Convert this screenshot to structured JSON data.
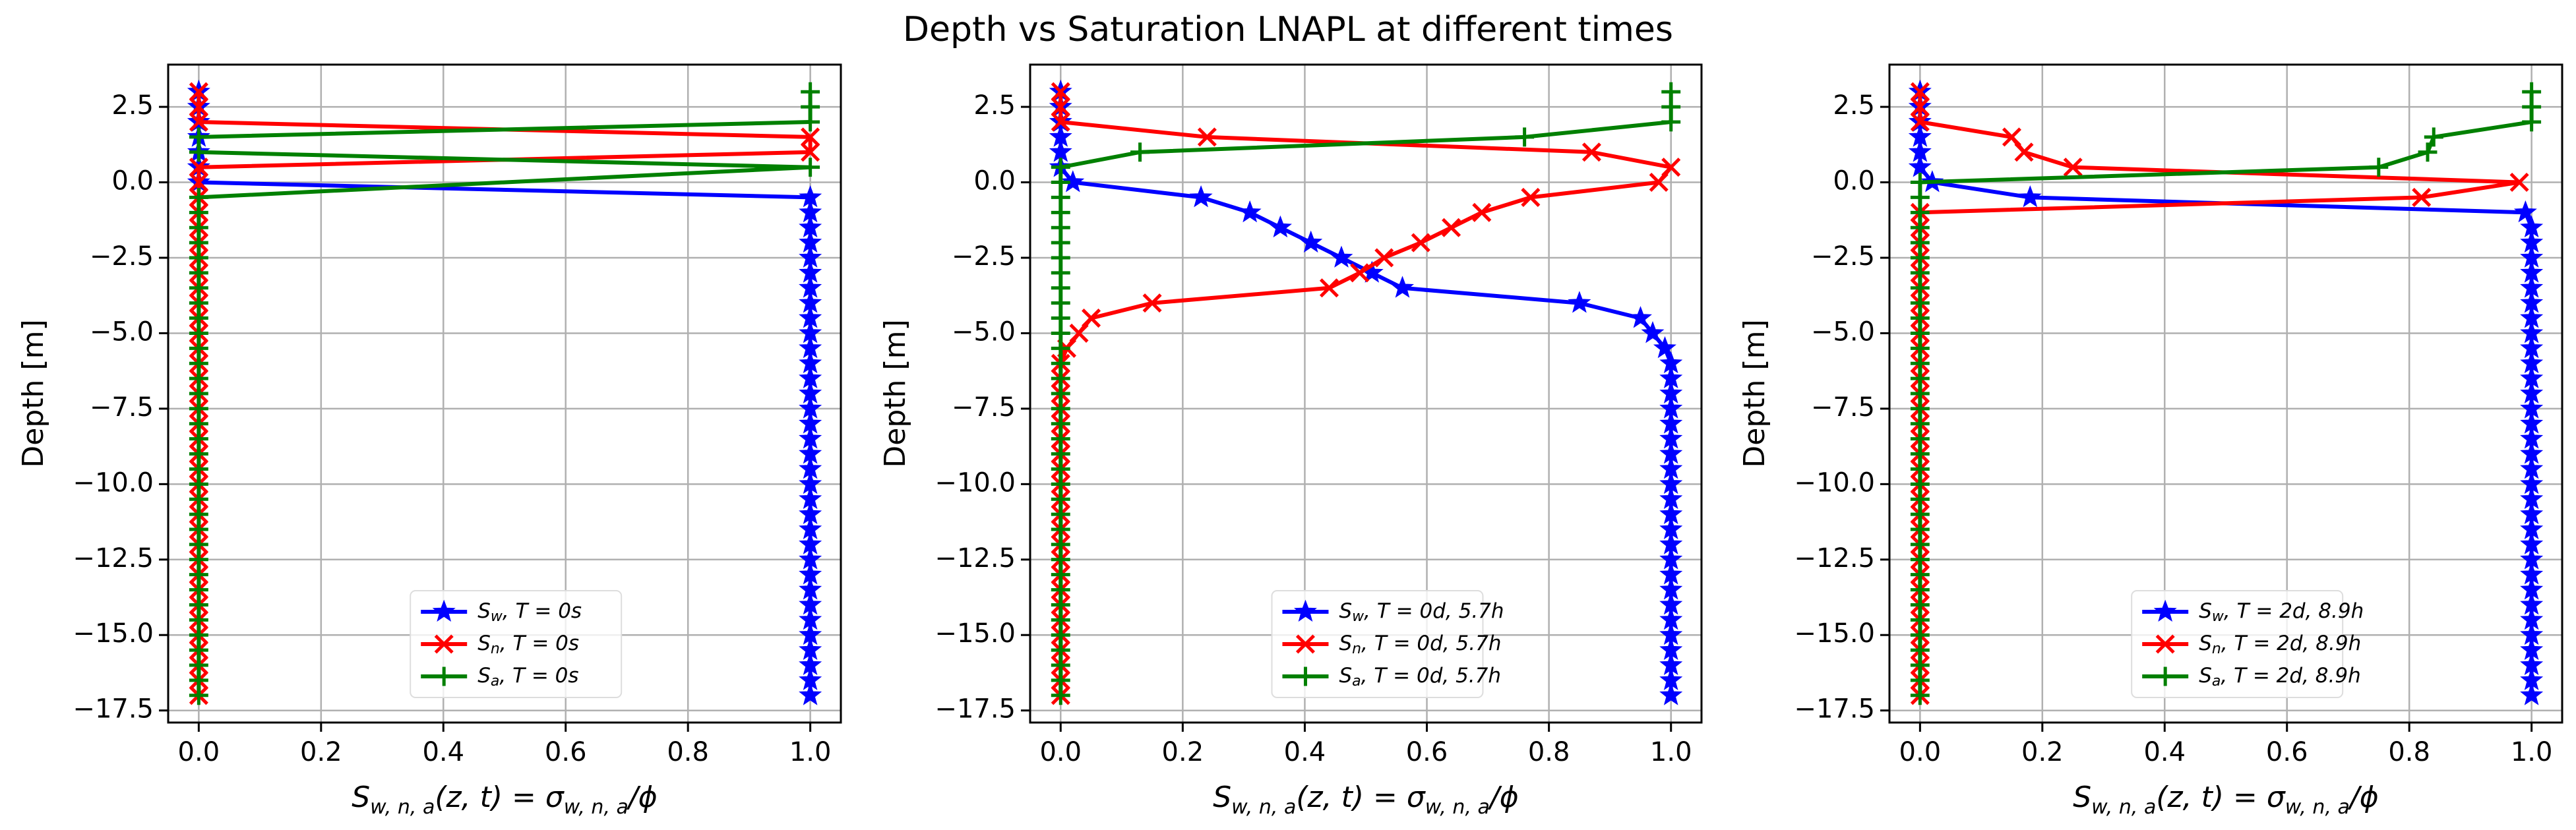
{
  "chart_data": {
    "title": "Depth vs Saturation LNAPL at different times",
    "xlabel": "S_{w,n,a}(z,t) = σ_{w,n,a}/ϕ",
    "ylabel": "Depth [m]",
    "xlim": [
      -0.05,
      1.05
    ],
    "ylim": [
      -17.9,
      3.9
    ],
    "xticks": [
      0.0,
      0.2,
      0.4,
      0.6,
      0.8,
      1.0
    ],
    "xtick_labels": [
      "0.0",
      "0.2",
      "0.4",
      "0.6",
      "0.8",
      "1.0"
    ],
    "yticks": [
      2.5,
      0.0,
      -2.5,
      -5.0,
      -7.5,
      -10.0,
      -12.5,
      -15.0,
      -17.5
    ],
    "ytick_labels": [
      "2.5",
      "0.0",
      "−2.5",
      "−5.0",
      "−7.5",
      "−10.0",
      "−12.5",
      "−15.0",
      "−17.5"
    ],
    "colors": {
      "water": "#0000ff",
      "napl": "#ff0000",
      "air": "#008000"
    },
    "panels": [
      {
        "type": "line",
        "grid": true,
        "legend_placement": "lower-center",
        "series": [
          {
            "name": "S_w, T = 0s",
            "key": "water",
            "marker": "star",
            "points": [
              [
                0,
                3.0
              ],
              [
                0,
                2.5
              ],
              [
                0,
                2.0
              ],
              [
                0,
                1.5
              ],
              [
                0,
                1.0
              ],
              [
                0,
                0.5
              ],
              [
                0,
                0.0
              ],
              [
                1,
                -0.5
              ],
              [
                1,
                -1.0
              ],
              [
                1,
                -17.0
              ]
            ]
          },
          {
            "name": "S_n, T = 0s",
            "key": "napl",
            "marker": "x",
            "points": [
              [
                0,
                3.0
              ],
              [
                0,
                2.5
              ],
              [
                0,
                2.0
              ],
              [
                1,
                1.5
              ],
              [
                1,
                1.0
              ],
              [
                0,
                0.5
              ],
              [
                0,
                0.0
              ],
              [
                0,
                -17.0
              ]
            ]
          },
          {
            "name": "S_a, T = 0s",
            "key": "air",
            "marker": "plus",
            "points": [
              [
                1,
                3.0
              ],
              [
                1,
                2.5
              ],
              [
                1,
                2.0
              ],
              [
                0,
                1.5
              ],
              [
                0,
                1.0
              ],
              [
                1,
                0.5
              ],
              [
                0,
                -0.5
              ],
              [
                0,
                -17.0
              ]
            ]
          }
        ]
      },
      {
        "type": "line",
        "grid": true,
        "legend_placement": "lower-center",
        "series": [
          {
            "name": "S_w, T = 0d, 5.7h",
            "key": "water",
            "marker": "star",
            "points": [
              [
                0,
                3.0
              ],
              [
                0,
                2.5
              ],
              [
                0,
                2.0
              ],
              [
                0,
                1.5
              ],
              [
                0,
                1.0
              ],
              [
                0,
                0.5
              ],
              [
                0.02,
                0.0
              ],
              [
                0.23,
                -0.5
              ],
              [
                0.31,
                -1.0
              ],
              [
                0.36,
                -1.5
              ],
              [
                0.41,
                -2.0
              ],
              [
                0.46,
                -2.5
              ],
              [
                0.51,
                -3.0
              ],
              [
                0.56,
                -3.5
              ],
              [
                0.85,
                -4.0
              ],
              [
                0.95,
                -4.5
              ],
              [
                0.97,
                -5.0
              ],
              [
                0.99,
                -5.5
              ],
              [
                1.0,
                -6.0
              ],
              [
                1.0,
                -17.0
              ]
            ]
          },
          {
            "name": "S_n, T = 0d, 5.7h",
            "key": "napl",
            "marker": "x",
            "points": [
              [
                0,
                3.0
              ],
              [
                0,
                2.5
              ],
              [
                0,
                2.0
              ],
              [
                0.24,
                1.5
              ],
              [
                0.87,
                1.0
              ],
              [
                1.0,
                0.5
              ],
              [
                0.98,
                0.0
              ],
              [
                0.77,
                -0.5
              ],
              [
                0.69,
                -1.0
              ],
              [
                0.64,
                -1.5
              ],
              [
                0.59,
                -2.0
              ],
              [
                0.53,
                -2.5
              ],
              [
                0.49,
                -3.0
              ],
              [
                0.44,
                -3.5
              ],
              [
                0.15,
                -4.0
              ],
              [
                0.05,
                -4.5
              ],
              [
                0.03,
                -5.0
              ],
              [
                0.01,
                -5.5
              ],
              [
                0,
                -6.0
              ],
              [
                0,
                -17.0
              ]
            ]
          },
          {
            "name": "S_a, T = 0d, 5.7h",
            "key": "air",
            "marker": "plus",
            "points": [
              [
                1.0,
                3.0
              ],
              [
                1.0,
                2.5
              ],
              [
                1.0,
                2.0
              ],
              [
                0.76,
                1.5
              ],
              [
                0.13,
                1.0
              ],
              [
                0,
                0.5
              ],
              [
                0,
                0.0
              ],
              [
                0,
                -17.0
              ]
            ]
          }
        ]
      },
      {
        "type": "line",
        "grid": true,
        "legend_placement": "lower-center",
        "series": [
          {
            "name": "S_w, T = 2d, 8.9h",
            "key": "water",
            "marker": "star",
            "points": [
              [
                0,
                3.0
              ],
              [
                0,
                2.5
              ],
              [
                0,
                2.0
              ],
              [
                0,
                1.5
              ],
              [
                0,
                1.0
              ],
              [
                0,
                0.5
              ],
              [
                0.02,
                0.0
              ],
              [
                0.18,
                -0.5
              ],
              [
                0.99,
                -1.0
              ],
              [
                1.0,
                -1.5
              ],
              [
                1.0,
                -17.0
              ]
            ]
          },
          {
            "name": "S_n, T = 2d, 8.9h",
            "key": "napl",
            "marker": "x",
            "points": [
              [
                0,
                3.0
              ],
              [
                0,
                2.5
              ],
              [
                0,
                2.0
              ],
              [
                0.15,
                1.5
              ],
              [
                0.17,
                1.0
              ],
              [
                0.25,
                0.5
              ],
              [
                0.98,
                0.0
              ],
              [
                0.82,
                -0.5
              ],
              [
                0.0,
                -1.0
              ],
              [
                0,
                -17.0
              ]
            ]
          },
          {
            "name": "S_a, T = 2d, 8.9h",
            "key": "air",
            "marker": "plus",
            "points": [
              [
                1.0,
                3.0
              ],
              [
                1.0,
                2.5
              ],
              [
                1.0,
                2.0
              ],
              [
                0.84,
                1.5
              ],
              [
                0.83,
                1.0
              ],
              [
                0.75,
                0.5
              ],
              [
                0,
                0.0
              ],
              [
                0,
                -0.5
              ],
              [
                0,
                -1.0
              ],
              [
                0,
                -17.0
              ]
            ]
          }
        ]
      }
    ]
  }
}
